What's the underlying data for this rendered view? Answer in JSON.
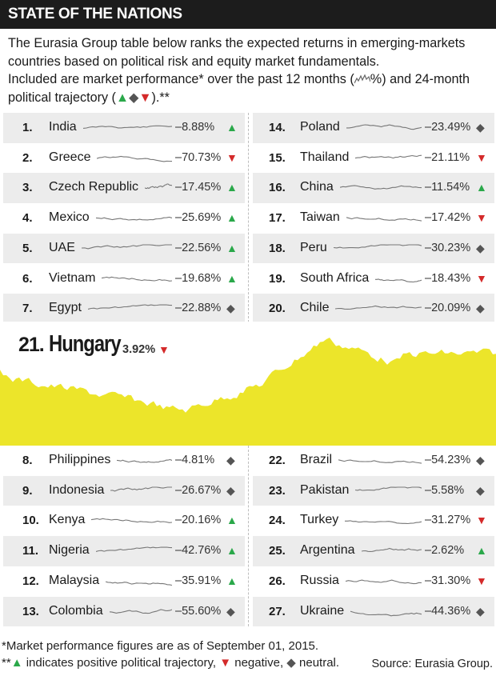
{
  "header": {
    "title": "STATE OF THE NATIONS"
  },
  "intro": {
    "line1": "The Eurasia Group table below ranks the expected returns in emerging-markets",
    "line2": "countries based on political risk and equity market fundamentals.",
    "line3_a": "Included are market performance* over the past 12 months (",
    "line3_b": "%) and 24-month",
    "line4_a": "political trajectory (",
    "line4_b": ").**"
  },
  "symbols": {
    "up": "▲",
    "down": "▼",
    "flat": "◆"
  },
  "colors": {
    "up": "#2aa84a",
    "down": "#d42a2a",
    "flat": "#555555",
    "feature_fill": "#ece52a",
    "header_bg": "#1c1c1c"
  },
  "left_top": [
    {
      "rank": "1.",
      "name": "India",
      "value": "–8.88%",
      "trajectory": "up"
    },
    {
      "rank": "2.",
      "name": "Greece",
      "value": "–70.73%",
      "trajectory": "down"
    },
    {
      "rank": "3.",
      "name": "Czech Republic",
      "value": "–17.45%",
      "trajectory": "up"
    },
    {
      "rank": "4.",
      "name": "Mexico",
      "value": "–25.69%",
      "trajectory": "up"
    },
    {
      "rank": "5.",
      "name": "UAE",
      "value": "–22.56%",
      "trajectory": "up"
    },
    {
      "rank": "6.",
      "name": "Vietnam",
      "value": "–19.68%",
      "trajectory": "up"
    },
    {
      "rank": "7.",
      "name": "Egypt",
      "value": "–22.88%",
      "trajectory": "flat"
    }
  ],
  "right_top": [
    {
      "rank": "14.",
      "name": "Poland",
      "value": "–23.49%",
      "trajectory": "flat"
    },
    {
      "rank": "15.",
      "name": "Thailand",
      "value": "–21.11%",
      "trajectory": "down"
    },
    {
      "rank": "16.",
      "name": "China",
      "value": "–11.54%",
      "trajectory": "up"
    },
    {
      "rank": "17.",
      "name": "Taiwan",
      "value": "–17.42%",
      "trajectory": "down"
    },
    {
      "rank": "18.",
      "name": "Peru",
      "value": "–30.23%",
      "trajectory": "flat"
    },
    {
      "rank": "19.",
      "name": "South Africa",
      "value": "–18.43%",
      "trajectory": "down"
    },
    {
      "rank": "20.",
      "name": "Chile",
      "value": "–20.09%",
      "trajectory": "flat"
    }
  ],
  "feature": {
    "rank": "21.",
    "name": "Hungary",
    "value": "3.92%",
    "trajectory": "down"
  },
  "left_bottom": [
    {
      "rank": "8.",
      "name": "Philippines",
      "value": "–4.81%",
      "trajectory": "flat"
    },
    {
      "rank": "9.",
      "name": "Indonesia",
      "value": "–26.67%",
      "trajectory": "flat"
    },
    {
      "rank": "10.",
      "name": "Kenya",
      "value": "–20.16%",
      "trajectory": "up"
    },
    {
      "rank": "11.",
      "name": "Nigeria",
      "value": "–42.76%",
      "trajectory": "up"
    },
    {
      "rank": "12.",
      "name": "Malaysia",
      "value": "–35.91%",
      "trajectory": "up"
    },
    {
      "rank": "13.",
      "name": "Colombia",
      "value": "–55.60%",
      "trajectory": "flat"
    }
  ],
  "right_bottom": [
    {
      "rank": "22.",
      "name": "Brazil",
      "value": "–54.23%",
      "trajectory": "flat"
    },
    {
      "rank": "23.",
      "name": "Pakistan",
      "value": "–5.58%",
      "trajectory": "flat"
    },
    {
      "rank": "24.",
      "name": "Turkey",
      "value": "–31.27%",
      "trajectory": "down"
    },
    {
      "rank": "25.",
      "name": "Argentina",
      "value": "–2.62%",
      "trajectory": "up"
    },
    {
      "rank": "26.",
      "name": "Russia",
      "value": "–31.30%",
      "trajectory": "down"
    },
    {
      "rank": "27.",
      "name": "Ukraine",
      "value": "–44.36%",
      "trajectory": "flat"
    }
  ],
  "footnotes": {
    "line1": "*Market performance figures are as of September 01, 2015.",
    "line2_a": "**",
    "line2_b": " indicates positive political trajectory, ",
    "line2_c": " negative, ",
    "line2_d": " neutral.",
    "source": "Source: Eurasia Group."
  }
}
